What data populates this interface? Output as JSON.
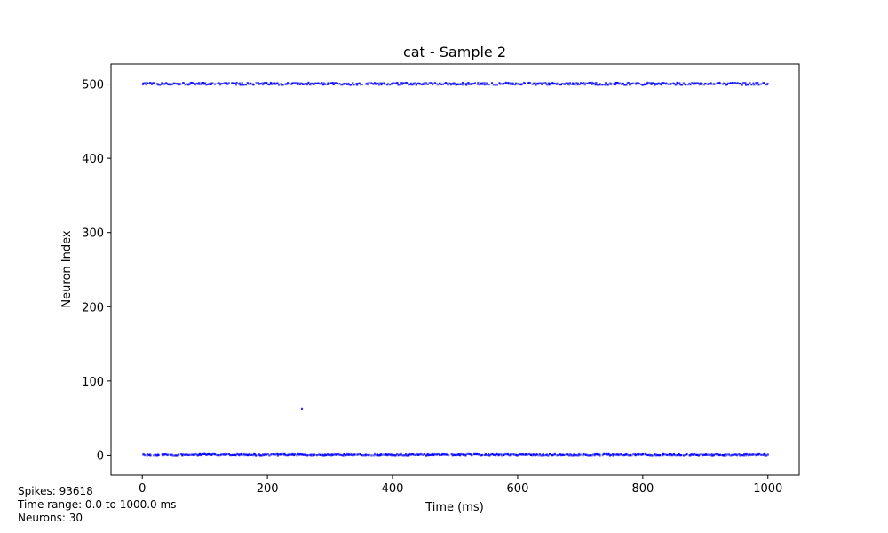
{
  "chart_data": {
    "type": "scatter",
    "title": "cat - Sample 2",
    "xlabel": "Time (ms)",
    "ylabel": "Neuron Index",
    "xlim": [
      -50,
      1050
    ],
    "ylim": [
      -27,
      527
    ],
    "xticks": [
      0,
      200,
      400,
      600,
      800,
      1000
    ],
    "yticks": [
      0,
      100,
      200,
      300,
      400,
      500
    ],
    "grid": false,
    "marker_color": "#0000ff",
    "series": [
      {
        "neuron_band": [
          499,
          502
        ],
        "x_range": [
          0,
          1000
        ],
        "description_points": "dense spikes"
      },
      {
        "neuron_band": [
          0,
          2
        ],
        "x_range": [
          0,
          1000
        ],
        "description_points": "dense spikes"
      },
      {
        "points": [
          [
            255,
            63
          ]
        ]
      }
    ]
  },
  "info": {
    "spikes": "Spikes: 93618",
    "time_range": "Time range: 0.0 to 1000.0 ms",
    "neurons": "Neurons: 30"
  }
}
